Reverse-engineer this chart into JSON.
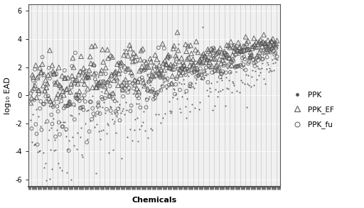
{
  "n_chemicals": 300,
  "seed": 42,
  "ylim": [
    -6.5,
    6.5
  ],
  "yticks": [
    -6,
    -4,
    -2,
    0,
    2,
    4,
    6
  ],
  "xlabel": "Chemicals",
  "ylabel": "log₁₀ EAD",
  "legend_labels": [
    "PPK",
    "PPK_EF",
    "PPK_fu"
  ],
  "ppk_color": "#555555",
  "ppk_ef_color": "#555555",
  "ppk_fu_color": "#555555",
  "bg_color": "#d3d3d3",
  "fig_bg": "#ffffff",
  "grid_color": "#ffffff",
  "marker_size_ppk": 9,
  "marker_size_ef": 22,
  "marker_size_fu": 12
}
